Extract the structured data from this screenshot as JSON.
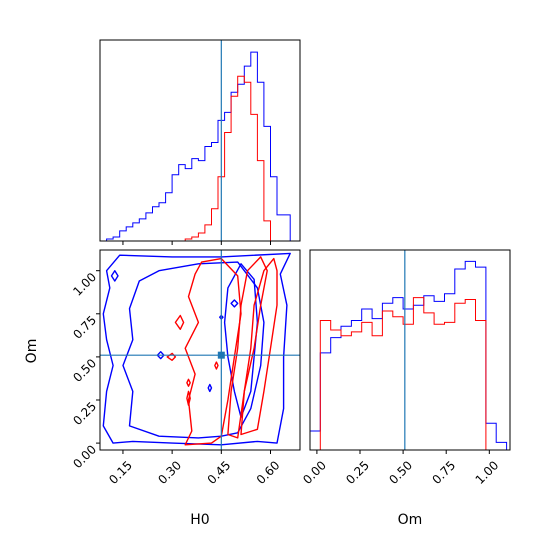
{
  "colors": {
    "blue": "#0000ff",
    "red": "#ff0000",
    "truth": "#1f77b4",
    "frame": "#000000"
  },
  "chart_data": [
    {
      "type": "histogram",
      "panel": "H0 marginal",
      "xlim": [
        0.08,
        0.69
      ],
      "bin_edges": [
        0.08,
        0.1,
        0.12,
        0.14,
        0.16,
        0.18,
        0.2,
        0.22,
        0.24,
        0.26,
        0.28,
        0.3,
        0.32,
        0.34,
        0.36,
        0.38,
        0.4,
        0.42,
        0.44,
        0.46,
        0.48,
        0.5,
        0.52,
        0.54,
        0.56,
        0.58,
        0.6,
        0.62,
        0.64,
        0.66,
        0.68
      ],
      "series": [
        {
          "color": "blue",
          "values": [
            0,
            0.01,
            0.02,
            0.05,
            0.07,
            0.09,
            0.11,
            0.14,
            0.17,
            0.19,
            0.24,
            0.33,
            0.38,
            0.36,
            0.41,
            0.4,
            0.47,
            0.49,
            0.6,
            0.64,
            0.74,
            0.78,
            0.87,
            0.94,
            0.79,
            0.57,
            0.32,
            0.13,
            0.13,
            0
          ]
        },
        {
          "color": "red",
          "values": [
            0,
            0,
            0,
            0,
            0,
            0,
            0,
            0,
            0,
            0,
            0,
            0,
            0,
            0.01,
            0.02,
            0.04,
            0.08,
            0.16,
            0.32,
            0.54,
            0.72,
            0.82,
            0.79,
            0.63,
            0.4,
            0.1,
            0,
            0,
            0,
            0
          ]
        }
      ],
      "truth": 0.45,
      "xticks": [
        "0.15",
        "0.30",
        "0.45",
        "0.60"
      ],
      "xtick_values": [
        0.15,
        0.3,
        0.45,
        0.6
      ]
    },
    {
      "type": "contour",
      "panel": "H0 vs Om",
      "xlabel": "H0",
      "ylabel": "Om",
      "xlim": [
        0.08,
        0.69
      ],
      "ylim": [
        -0.04,
        1.12
      ],
      "truth": {
        "x": 0.45,
        "y": 0.51
      },
      "xticks": [
        "0.15",
        "0.30",
        "0.45",
        "0.60"
      ],
      "xtick_values": [
        0.15,
        0.3,
        0.45,
        0.6
      ],
      "yticks": [
        "0.00",
        "0.25",
        "0.50",
        "0.75",
        "1.00"
      ],
      "ytick_values": [
        0,
        0.25,
        0.5,
        0.75,
        1.0
      ],
      "series": [
        {
          "color": "blue",
          "contours": [
            [
              [
                0.1,
                1.0
              ],
              [
                0.11,
                0.9
              ],
              [
                0.09,
                0.75
              ],
              [
                0.1,
                0.6
              ],
              [
                0.12,
                0.45
              ],
              [
                0.1,
                0.3
              ],
              [
                0.09,
                0.1
              ],
              [
                0.12,
                0.0
              ],
              [
                0.18,
                0.01
              ],
              [
                0.3,
                0.0
              ],
              [
                0.45,
                -0.01
              ],
              [
                0.56,
                0.01
              ],
              [
                0.62,
                0.0
              ],
              [
                0.64,
                0.2
              ],
              [
                0.64,
                0.5
              ],
              [
                0.65,
                0.8
              ],
              [
                0.63,
                0.98
              ],
              [
                0.66,
                1.1
              ],
              [
                0.45,
                1.08
              ],
              [
                0.3,
                1.08
              ],
              [
                0.14,
                1.09
              ],
              [
                0.1,
                1.0
              ]
            ],
            [
              [
                0.2,
                0.94
              ],
              [
                0.17,
                0.78
              ],
              [
                0.18,
                0.6
              ],
              [
                0.15,
                0.45
              ],
              [
                0.18,
                0.3
              ],
              [
                0.17,
                0.1
              ],
              [
                0.26,
                0.04
              ],
              [
                0.38,
                0.03
              ],
              [
                0.45,
                0.04
              ],
              [
                0.5,
                0.06
              ],
              [
                0.54,
                0.2
              ],
              [
                0.57,
                0.45
              ],
              [
                0.58,
                0.7
              ],
              [
                0.56,
                0.9
              ],
              [
                0.5,
                1.05
              ],
              [
                0.38,
                1.04
              ],
              [
                0.26,
                1.0
              ],
              [
                0.2,
                0.94
              ]
            ],
            [
              [
                0.47,
                0.9
              ],
              [
                0.46,
                0.7
              ],
              [
                0.47,
                0.5
              ],
              [
                0.49,
                0.3
              ],
              [
                0.51,
                0.15
              ],
              [
                0.54,
                0.3
              ],
              [
                0.55,
                0.5
              ],
              [
                0.56,
                0.7
              ],
              [
                0.55,
                0.95
              ],
              [
                0.51,
                1.04
              ],
              [
                0.47,
                0.9
              ]
            ],
            [
              [
                0.115,
                0.97
              ],
              [
                0.125,
                1.0
              ],
              [
                0.135,
                0.97
              ],
              [
                0.125,
                0.94
              ],
              [
                0.115,
                0.97
              ]
            ],
            [
              [
                0.255,
                0.51
              ],
              [
                0.265,
                0.53
              ],
              [
                0.275,
                0.51
              ],
              [
                0.265,
                0.49
              ],
              [
                0.255,
                0.51
              ]
            ],
            [
              [
                0.41,
                0.32
              ],
              [
                0.415,
                0.34
              ],
              [
                0.42,
                0.32
              ],
              [
                0.415,
                0.3
              ],
              [
                0.41,
                0.32
              ]
            ],
            [
              [
                0.48,
                0.81
              ],
              [
                0.49,
                0.83
              ],
              [
                0.5,
                0.81
              ],
              [
                0.49,
                0.79
              ],
              [
                0.48,
                0.81
              ]
            ],
            [
              [
                0.445,
                0.73
              ],
              [
                0.45,
                0.74
              ],
              [
                0.455,
                0.73
              ],
              [
                0.45,
                0.72
              ],
              [
                0.445,
                0.73
              ]
            ]
          ]
        },
        {
          "color": "red",
          "contours": [
            [
              [
                0.37,
                0.98
              ],
              [
                0.35,
                0.85
              ],
              [
                0.38,
                0.7
              ],
              [
                0.34,
                0.55
              ],
              [
                0.37,
                0.4
              ],
              [
                0.35,
                0.25
              ],
              [
                0.36,
                0.07
              ],
              [
                0.34,
                -0.01
              ],
              [
                0.42,
                0.0
              ],
              [
                0.45,
                0.04
              ],
              [
                0.47,
                0.25
              ],
              [
                0.49,
                0.5
              ],
              [
                0.51,
                0.75
              ],
              [
                0.5,
                0.97
              ],
              [
                0.45,
                1.07
              ],
              [
                0.39,
                1.05
              ],
              [
                0.37,
                0.98
              ]
            ],
            [
              [
                0.53,
                1.0
              ],
              [
                0.51,
                0.8
              ],
              [
                0.5,
                0.55
              ],
              [
                0.48,
                0.3
              ],
              [
                0.47,
                0.05
              ],
              [
                0.5,
                0.03
              ],
              [
                0.52,
                0.3
              ],
              [
                0.55,
                0.55
              ],
              [
                0.57,
                0.8
              ],
              [
                0.59,
                1.0
              ],
              [
                0.57,
                1.08
              ],
              [
                0.53,
                1.0
              ]
            ],
            [
              [
                0.58,
                1.0
              ],
              [
                0.55,
                0.8
              ],
              [
                0.54,
                0.55
              ],
              [
                0.52,
                0.3
              ],
              [
                0.51,
                0.05
              ],
              [
                0.56,
                0.08
              ],
              [
                0.58,
                0.3
              ],
              [
                0.6,
                0.55
              ],
              [
                0.62,
                0.8
              ],
              [
                0.62,
                1.0
              ],
              [
                0.61,
                1.07
              ],
              [
                0.58,
                1.0
              ]
            ],
            [
              [
                0.31,
                0.7
              ],
              [
                0.325,
                0.74
              ],
              [
                0.335,
                0.7
              ],
              [
                0.325,
                0.66
              ],
              [
                0.31,
                0.7
              ]
            ],
            [
              [
                0.285,
                0.5
              ],
              [
                0.3,
                0.52
              ],
              [
                0.31,
                0.5
              ],
              [
                0.3,
                0.48
              ],
              [
                0.285,
                0.5
              ]
            ],
            [
              [
                0.345,
                0.26
              ],
              [
                0.35,
                0.22
              ],
              [
                0.355,
                0.26
              ],
              [
                0.35,
                0.3
              ],
              [
                0.345,
                0.26
              ]
            ],
            [
              [
                0.345,
                0.35
              ],
              [
                0.35,
                0.33
              ],
              [
                0.355,
                0.35
              ],
              [
                0.35,
                0.37
              ],
              [
                0.345,
                0.35
              ]
            ],
            [
              [
                0.43,
                0.45
              ],
              [
                0.435,
                0.47
              ],
              [
                0.44,
                0.45
              ],
              [
                0.435,
                0.43
              ],
              [
                0.43,
                0.45
              ]
            ]
          ]
        }
      ]
    },
    {
      "type": "histogram",
      "panel": "Om marginal",
      "xlabel": "Om",
      "xlim": [
        -0.04,
        1.12
      ],
      "bin_edges": [
        -0.04,
        0.02,
        0.08,
        0.14,
        0.2,
        0.26,
        0.32,
        0.38,
        0.44,
        0.5,
        0.56,
        0.62,
        0.68,
        0.74,
        0.8,
        0.86,
        0.92,
        0.98,
        1.04,
        1.1
      ],
      "series": [
        {
          "color": "blue",
          "values": [
            0.1,
            0.51,
            0.59,
            0.65,
            0.68,
            0.74,
            0.69,
            0.77,
            0.8,
            0.74,
            0.76,
            0.81,
            0.78,
            0.82,
            0.95,
            0.99,
            0.96,
            0.14,
            0.04
          ]
        },
        {
          "color": "red",
          "values": [
            0,
            0.68,
            0.63,
            0.6,
            0.62,
            0.67,
            0.6,
            0.73,
            0.7,
            0.66,
            0.8,
            0.72,
            0.66,
            0.67,
            0.77,
            0.79,
            0.68,
            0,
            0
          ]
        }
      ],
      "truth": 0.51,
      "xticks": [
        "0.00",
        "0.25",
        "0.50",
        "0.75",
        "1.00"
      ],
      "xtick_values": [
        0,
        0.25,
        0.5,
        0.75,
        1.0
      ]
    }
  ]
}
